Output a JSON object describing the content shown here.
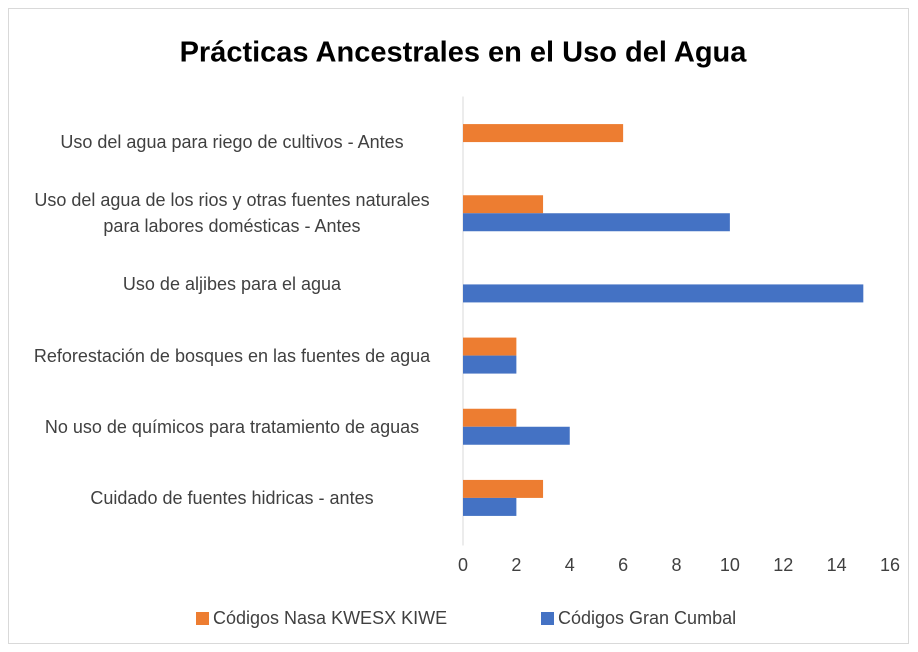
{
  "chart_data": {
    "type": "hbar",
    "title": "Prácticas Ancestrales en el Uso del Agua",
    "categories": [
      "Uso del agua para riego de cultivos - Antes",
      "Uso del agua de los rios y otras fuentes naturales para labores domésticas - Antes",
      "Uso de aljibes para el agua",
      "Reforestación de bosques en las fuentes de agua",
      "No uso de químicos para tratamiento de aguas",
      "Cuidado de fuentes hidricas - antes"
    ],
    "series": [
      {
        "name": "Códigos Nasa KWESX KIWE",
        "color": "#ed7d31",
        "values": [
          6,
          3,
          null,
          2,
          2,
          3
        ]
      },
      {
        "name": "Códigos Gran Cumbal",
        "color": "#4472c4",
        "values": [
          null,
          10,
          15,
          2,
          4,
          2
        ]
      }
    ],
    "xlim": [
      0,
      16
    ],
    "xticks": [
      0,
      2,
      4,
      6,
      8,
      10,
      12,
      14,
      16
    ],
    "grid": false,
    "legend": "bottom"
  }
}
